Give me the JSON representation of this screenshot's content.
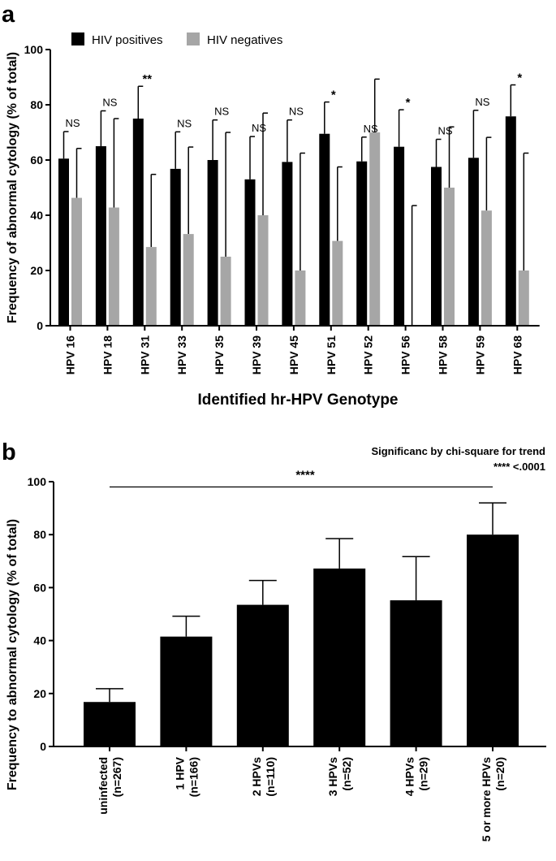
{
  "panels": {
    "a": {
      "label": "a"
    },
    "b": {
      "label": "b"
    }
  },
  "chart_data": [
    {
      "type": "bar",
      "panel": "a",
      "xlabel": "Identified hr-HPV Genotype",
      "ylabel": "Frequency of abnormal cytology (% of total)",
      "ylim": [
        0,
        100
      ],
      "yticks": [
        0,
        20,
        40,
        60,
        80,
        100
      ],
      "grid": false,
      "legend_position": "top-left",
      "categories": [
        "HPV 16",
        "HPV 18",
        "HPV 31",
        "HPV 33",
        "HPV 35",
        "HPV 39",
        "HPV 45",
        "HPV 51",
        "HPV 52",
        "HPV 56",
        "HPV 58",
        "HPV 59",
        "HPV 68"
      ],
      "series": [
        {
          "name": "HIV positives",
          "color": "#000000",
          "values": [
            60.5,
            65,
            75,
            56.8,
            60,
            53,
            59.3,
            69.5,
            59.5,
            64.8,
            57.5,
            60.8,
            75.8
          ],
          "error_upper": [
            70.3,
            77.8,
            86.7,
            70.2,
            74.5,
            68.5,
            74.5,
            81,
            68.3,
            78.2,
            67.5,
            78,
            87.2
          ]
        },
        {
          "name": "HIV negatives",
          "color": "#a6a6a6",
          "values": [
            46.3,
            42.8,
            28.5,
            33.2,
            25,
            40,
            20,
            30.7,
            70,
            0,
            50,
            41.7,
            20
          ],
          "error_upper": [
            64.2,
            75,
            54.8,
            64.7,
            70,
            77,
            62.5,
            57.5,
            89.3,
            43.5,
            72,
            68.2,
            62.5
          ]
        }
      ],
      "annotations": [
        "NS",
        "NS",
        "**",
        "NS",
        "NS",
        "NS",
        "NS",
        "*",
        "NS",
        "*",
        "NS",
        "NS",
        "*"
      ]
    },
    {
      "type": "bar",
      "panel": "b",
      "title": "",
      "ylabel": "Frequency to abnormal cytology (% of total)",
      "xlabel": "",
      "ylim": [
        0,
        100
      ],
      "yticks": [
        0,
        20,
        40,
        60,
        80,
        100
      ],
      "grid": false,
      "categories": [
        [
          "uninfected",
          "(n=267)"
        ],
        [
          "1 HPV",
          "(n=166)"
        ],
        [
          "2 HPVs",
          "(n=110)"
        ],
        [
          "3 HPVs",
          "(n=52)"
        ],
        [
          "4 HPVs",
          "(n=29)"
        ],
        [
          "5 or more HPVs",
          "(n=20)"
        ]
      ],
      "color": "#000000",
      "values": [
        16.8,
        41.5,
        53.5,
        67.2,
        55.2,
        80
      ],
      "error_upper": [
        21.8,
        49.2,
        62.7,
        78.5,
        71.7,
        92
      ],
      "significance_bar": {
        "label": "****",
        "y": 98
      },
      "note_lines": [
        "Significanc by chi-square for trend",
        "**** <.0001"
      ]
    }
  ]
}
